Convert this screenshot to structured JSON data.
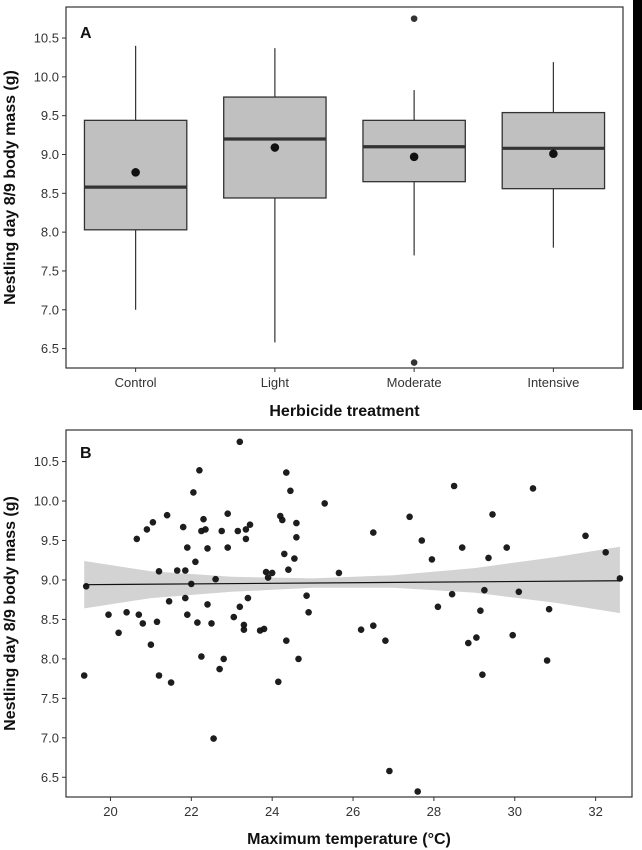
{
  "colors": {
    "box_fill": "#c0c0c0",
    "box_stroke": "#333333",
    "median": "#333333",
    "points": "#111111",
    "ci_band": "#d3d3d3",
    "fit_line": "#111111"
  },
  "chart_data": [
    {
      "type": "box",
      "panel_label": "A",
      "xlabel": "Herbicide treatment",
      "ylabel": "Nestling day 8/9 body mass (g)",
      "ylim": [
        6.25,
        10.9
      ],
      "yticks": [
        "6.5",
        "7.0",
        "7.5",
        "8.0",
        "8.5",
        "9.0",
        "9.5",
        "10.0",
        "10.5"
      ],
      "categories": [
        "Control",
        "Light",
        "Moderate",
        "Intensive"
      ],
      "boxes": [
        {
          "category": "Control",
          "whisker_low": 7.0,
          "q1": 8.03,
          "median": 8.58,
          "q3": 9.44,
          "whisker_high": 10.4,
          "mean": 8.77,
          "outliers": []
        },
        {
          "category": "Light",
          "whisker_low": 6.58,
          "q1": 8.44,
          "median": 9.2,
          "q3": 9.74,
          "whisker_high": 10.37,
          "mean": 9.09,
          "outliers": []
        },
        {
          "category": "Moderate",
          "whisker_low": 7.7,
          "q1": 8.65,
          "median": 9.1,
          "q3": 9.44,
          "whisker_high": 9.83,
          "mean": 8.97,
          "outliers": [
            10.75,
            6.32
          ]
        },
        {
          "category": "Intensive",
          "whisker_low": 7.8,
          "q1": 8.56,
          "median": 9.08,
          "q3": 9.54,
          "whisker_high": 10.19,
          "mean": 9.01,
          "outliers": []
        }
      ]
    },
    {
      "type": "scatter",
      "panel_label": "B",
      "xlabel": "Maximum temperature (°C)",
      "ylabel": "Nestling day 8/9 body mass (g)",
      "xlim": [
        18.9,
        32.9
      ],
      "ylim": [
        6.25,
        10.9
      ],
      "xticks": [
        "20",
        "22",
        "24",
        "26",
        "28",
        "30",
        "32"
      ],
      "yticks": [
        "6.5",
        "7.0",
        "7.5",
        "8.0",
        "8.5",
        "9.0",
        "9.5",
        "10.0",
        "10.5"
      ],
      "fit": {
        "x": [
          19.35,
          32.6
        ],
        "y": [
          8.94,
          8.99
        ]
      },
      "ci_band": {
        "x": [
          19.35,
          21.0,
          23.0,
          25.0,
          27.0,
          29.0,
          31.0,
          32.6
        ],
        "upper": [
          9.24,
          9.11,
          9.04,
          9.02,
          9.06,
          9.15,
          9.29,
          9.42
        ],
        "lower": [
          8.64,
          8.77,
          8.85,
          8.9,
          8.9,
          8.84,
          8.71,
          8.58
        ]
      },
      "points": [
        [
          19.35,
          7.79
        ],
        [
          19.4,
          8.92
        ],
        [
          19.95,
          8.56
        ],
        [
          20.2,
          8.33
        ],
        [
          20.4,
          8.59
        ],
        [
          20.65,
          9.52
        ],
        [
          20.7,
          8.56
        ],
        [
          20.8,
          8.45
        ],
        [
          20.9,
          9.64
        ],
        [
          21.0,
          8.18
        ],
        [
          21.05,
          9.73
        ],
        [
          21.15,
          8.47
        ],
        [
          21.2,
          7.79
        ],
        [
          21.2,
          9.11
        ],
        [
          21.4,
          9.82
        ],
        [
          21.45,
          8.73
        ],
        [
          21.5,
          7.7
        ],
        [
          21.65,
          9.12
        ],
        [
          21.8,
          9.67
        ],
        [
          21.85,
          8.77
        ],
        [
          21.85,
          9.12
        ],
        [
          21.9,
          8.56
        ],
        [
          21.9,
          9.41
        ],
        [
          22.0,
          8.95
        ],
        [
          22.05,
          10.11
        ],
        [
          22.1,
          9.23
        ],
        [
          22.15,
          8.46
        ],
        [
          22.2,
          10.39
        ],
        [
          22.25,
          8.03
        ],
        [
          22.25,
          9.62
        ],
        [
          22.3,
          9.77
        ],
        [
          22.35,
          9.64
        ],
        [
          22.4,
          8.69
        ],
        [
          22.4,
          9.4
        ],
        [
          22.5,
          8.45
        ],
        [
          22.55,
          6.99
        ],
        [
          22.6,
          9.01
        ],
        [
          22.7,
          7.87
        ],
        [
          22.75,
          9.62
        ],
        [
          22.8,
          8.0
        ],
        [
          22.9,
          9.41
        ],
        [
          22.9,
          9.84
        ],
        [
          23.05,
          8.53
        ],
        [
          23.15,
          9.62
        ],
        [
          23.2,
          8.66
        ],
        [
          23.2,
          10.75
        ],
        [
          23.3,
          8.43
        ],
        [
          23.3,
          8.37
        ],
        [
          23.35,
          9.52
        ],
        [
          23.35,
          9.64
        ],
        [
          23.4,
          8.77
        ],
        [
          23.45,
          9.7
        ],
        [
          23.7,
          8.36
        ],
        [
          23.8,
          8.38
        ],
        [
          23.85,
          9.1
        ],
        [
          23.9,
          9.03
        ],
        [
          24.0,
          9.09
        ],
        [
          24.15,
          7.71
        ],
        [
          24.2,
          9.81
        ],
        [
          24.25,
          9.76
        ],
        [
          24.3,
          9.33
        ],
        [
          24.35,
          10.36
        ],
        [
          24.35,
          8.23
        ],
        [
          24.4,
          9.13
        ],
        [
          24.45,
          10.13
        ],
        [
          24.55,
          9.27
        ],
        [
          24.6,
          9.72
        ],
        [
          24.6,
          9.54
        ],
        [
          24.65,
          8.0
        ],
        [
          24.85,
          8.8
        ],
        [
          24.9,
          8.59
        ],
        [
          25.3,
          9.97
        ],
        [
          25.65,
          9.09
        ],
        [
          26.2,
          8.37
        ],
        [
          26.5,
          8.42
        ],
        [
          26.5,
          9.6
        ],
        [
          26.8,
          8.23
        ],
        [
          26.9,
          6.58
        ],
        [
          27.4,
          9.8
        ],
        [
          27.6,
          6.32
        ],
        [
          27.7,
          9.5
        ],
        [
          27.95,
          9.26
        ],
        [
          28.1,
          8.66
        ],
        [
          28.45,
          8.82
        ],
        [
          28.5,
          10.19
        ],
        [
          28.7,
          9.41
        ],
        [
          28.85,
          8.2
        ],
        [
          29.05,
          8.27
        ],
        [
          29.15,
          8.61
        ],
        [
          29.2,
          7.8
        ],
        [
          29.25,
          8.87
        ],
        [
          29.35,
          9.28
        ],
        [
          29.45,
          9.83
        ],
        [
          29.8,
          9.41
        ],
        [
          29.95,
          8.3
        ],
        [
          30.1,
          8.85
        ],
        [
          30.45,
          10.16
        ],
        [
          30.8,
          7.98
        ],
        [
          30.85,
          8.63
        ],
        [
          31.75,
          9.56
        ],
        [
          32.25,
          9.35
        ],
        [
          32.6,
          9.02
        ]
      ]
    }
  ]
}
